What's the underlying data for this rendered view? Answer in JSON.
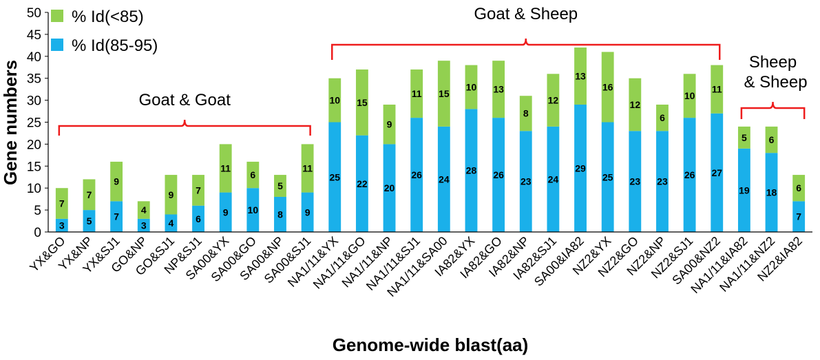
{
  "chart_data": {
    "type": "bar",
    "stacked": true,
    "xlabel": "Genome-wide  blast(aa)",
    "ylabel": "Gene numbers",
    "ylim": [
      0,
      50
    ],
    "yticks": [
      0,
      5,
      10,
      15,
      20,
      25,
      30,
      35,
      40,
      45,
      50
    ],
    "categories": [
      "YX&GO",
      "YX&NP",
      "YX&SJ1",
      "GO&NP",
      "GO&SJ1",
      "NP&SJ1",
      "SA00&YX",
      "SA00&GO",
      "SA00&NP",
      "SA00&SJ1",
      "NA1/11&YX",
      "NA1/11&GO",
      "NA1/11&NP",
      "NA1/11&SJ1",
      "NA1/11&SA00",
      "IA82&YX",
      "IA82&GO",
      "IA82&NP",
      "IA82&SJ1",
      "SA00&IA82",
      "NZ2&YX",
      "NZ2&GO",
      "NZ2&NP",
      "NZ2&SJ1",
      "SA00&NZ2",
      "NA1/11&IA82",
      "NA1/11&NZ2",
      "NZ2&IA82"
    ],
    "series": [
      {
        "name": "% Id(85-95)",
        "color": "#1ab0ea",
        "values": [
          3,
          5,
          7,
          3,
          4,
          6,
          9,
          10,
          8,
          9,
          25,
          22,
          20,
          26,
          24,
          28,
          26,
          23,
          24,
          29,
          25,
          23,
          23,
          26,
          27,
          19,
          18,
          7
        ]
      },
      {
        "name": "% Id(<85)",
        "color": "#92d050",
        "values": [
          7,
          7,
          9,
          4,
          9,
          7,
          11,
          6,
          5,
          11,
          10,
          15,
          9,
          11,
          15,
          10,
          13,
          8,
          12,
          13,
          16,
          12,
          6,
          10,
          11,
          5,
          6,
          6
        ]
      }
    ],
    "legend": {
      "position": "top-left",
      "entries": [
        "% Id(<85)",
        "% Id(85-95)"
      ]
    },
    "groups": [
      {
        "label": "Goat & Goat",
        "from": 0,
        "to": 9
      },
      {
        "label": "Goat & Sheep",
        "from": 10,
        "to": 24
      },
      {
        "label": "Sheep & Sheep",
        "from": 25,
        "to": 27
      }
    ],
    "group_color": "#ee1c1c"
  }
}
